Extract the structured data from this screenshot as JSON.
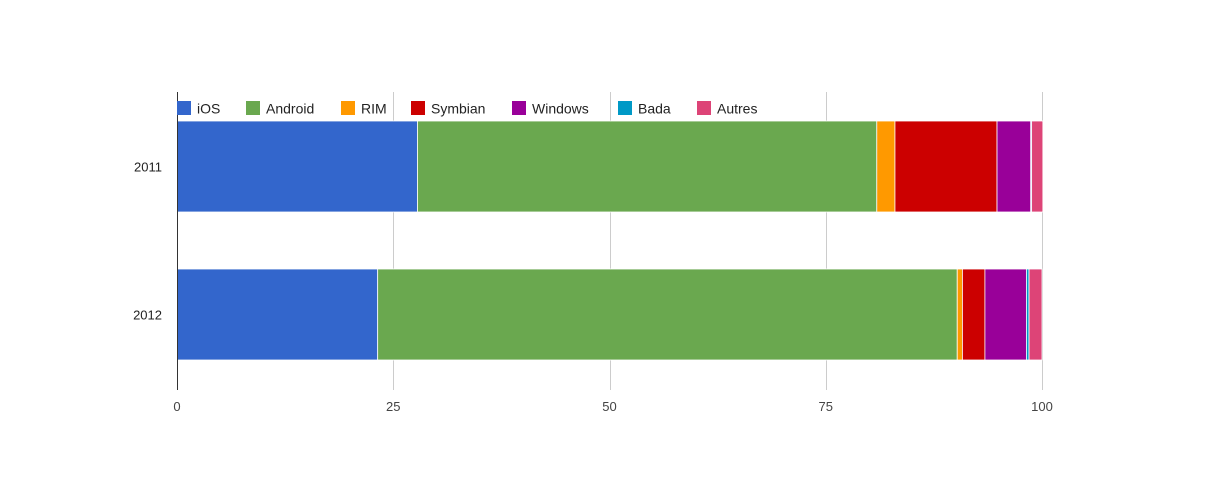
{
  "chart_data": {
    "type": "bar",
    "orientation": "horizontal",
    "stacked": true,
    "categories": [
      "2011",
      "2012"
    ],
    "series": [
      {
        "name": "iOS",
        "color": "#3366cc",
        "values": [
          27.8,
          23.2
        ]
      },
      {
        "name": "Android",
        "color": "#6aa84f",
        "values": [
          53.1,
          67.0
        ]
      },
      {
        "name": "RIM",
        "color": "#ff9900",
        "values": [
          2.1,
          0.6
        ]
      },
      {
        "name": "Symbian",
        "color": "#cc0000",
        "values": [
          11.8,
          2.6
        ]
      },
      {
        "name": "Windows",
        "color": "#990099",
        "values": [
          3.9,
          4.8
        ]
      },
      {
        "name": "Bada",
        "color": "#0099c6",
        "values": [
          0.1,
          0.3
        ]
      },
      {
        "name": "Autres",
        "color": "#dd4477",
        "values": [
          1.3,
          1.5
        ]
      }
    ],
    "xlim": [
      0,
      100
    ],
    "xticks": [
      "0",
      "25",
      "50",
      "75",
      "100"
    ],
    "grid": true,
    "legend_position": "top"
  }
}
